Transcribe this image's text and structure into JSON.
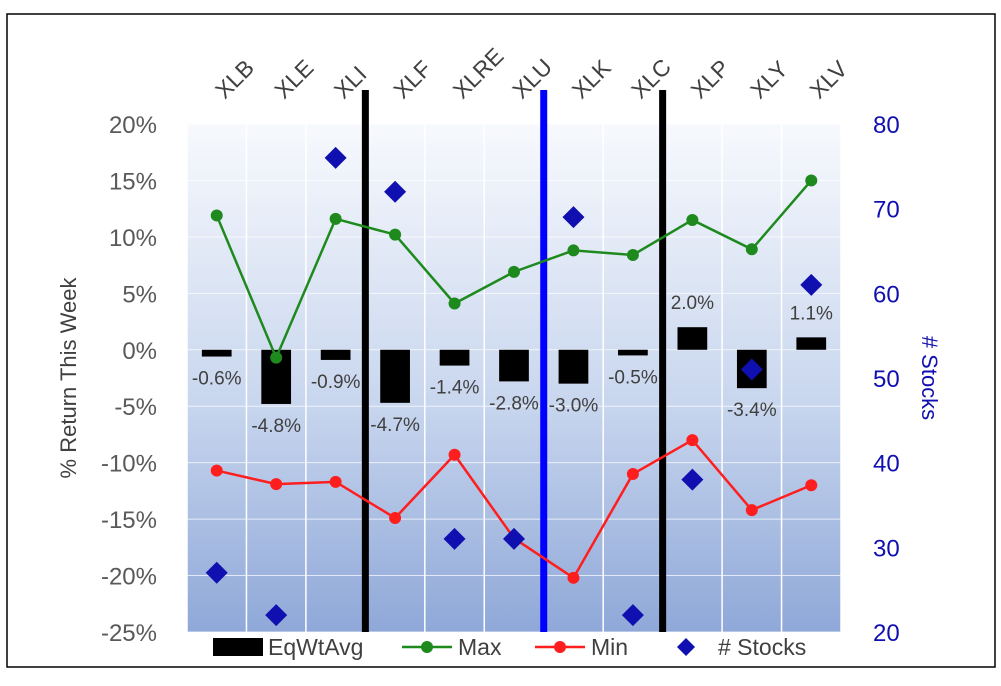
{
  "chart_data": {
    "type": "bar",
    "categories": [
      "XLB",
      "XLE",
      "XLI",
      "XLF",
      "XLRE",
      "XLU",
      "XLK",
      "XLC",
      "XLP",
      "XLY",
      "XLV"
    ],
    "series": [
      {
        "name": "EqWtAvg",
        "type": "bar",
        "axis": "left",
        "values": [
          -0.6,
          -4.8,
          -0.9,
          -4.7,
          -1.4,
          -2.8,
          -3.0,
          -0.5,
          2.0,
          -3.4,
          1.1
        ],
        "labels": [
          "-0.6%",
          "-4.8%",
          "-0.9%",
          "-4.7%",
          "-1.4%",
          "-2.8%",
          "-3.0%",
          "-0.5%",
          "2.0%",
          "-3.4%",
          "1.1%"
        ],
        "color": "#000000"
      },
      {
        "name": "Max",
        "type": "line",
        "axis": "left",
        "values": [
          11.9,
          -0.7,
          11.6,
          10.2,
          4.1,
          6.9,
          8.8,
          8.4,
          11.5,
          8.9,
          15.0
        ],
        "color": "#1E8A1E"
      },
      {
        "name": "Min",
        "type": "line",
        "axis": "left",
        "values": [
          -10.7,
          -11.9,
          -11.7,
          -14.9,
          -9.3,
          -16.7,
          -20.2,
          -11.0,
          -8.0,
          -14.2,
          -12.0
        ],
        "color": "#FF1E1E"
      },
      {
        "name": "# Stocks",
        "type": "scatter",
        "axis": "right",
        "values": [
          27,
          22,
          76,
          72,
          31,
          31,
          69,
          22,
          38,
          51,
          61
        ],
        "color": "#1010B0"
      }
    ],
    "ylabel": "% Return This Week",
    "y2label": "# Stocks",
    "ylim": [
      -25,
      20
    ],
    "yticks": [
      "20%",
      "15%",
      "10%",
      "5%",
      "0%",
      "-5%",
      "-10%",
      "-15%",
      "-20%",
      "-25%"
    ],
    "y2lim": [
      20,
      80
    ],
    "y2ticks": [
      "80",
      "70",
      "60",
      "50",
      "40",
      "30",
      "20"
    ],
    "separators": [
      {
        "after": "XLI",
        "color": "#000000"
      },
      {
        "after": "XLU",
        "color": "#0000FF"
      },
      {
        "after": "XLC",
        "color": "#000000"
      }
    ],
    "legend": [
      "EqWtAvg",
      "Max",
      "Min",
      "# Stocks"
    ],
    "legend_position": "bottom"
  }
}
